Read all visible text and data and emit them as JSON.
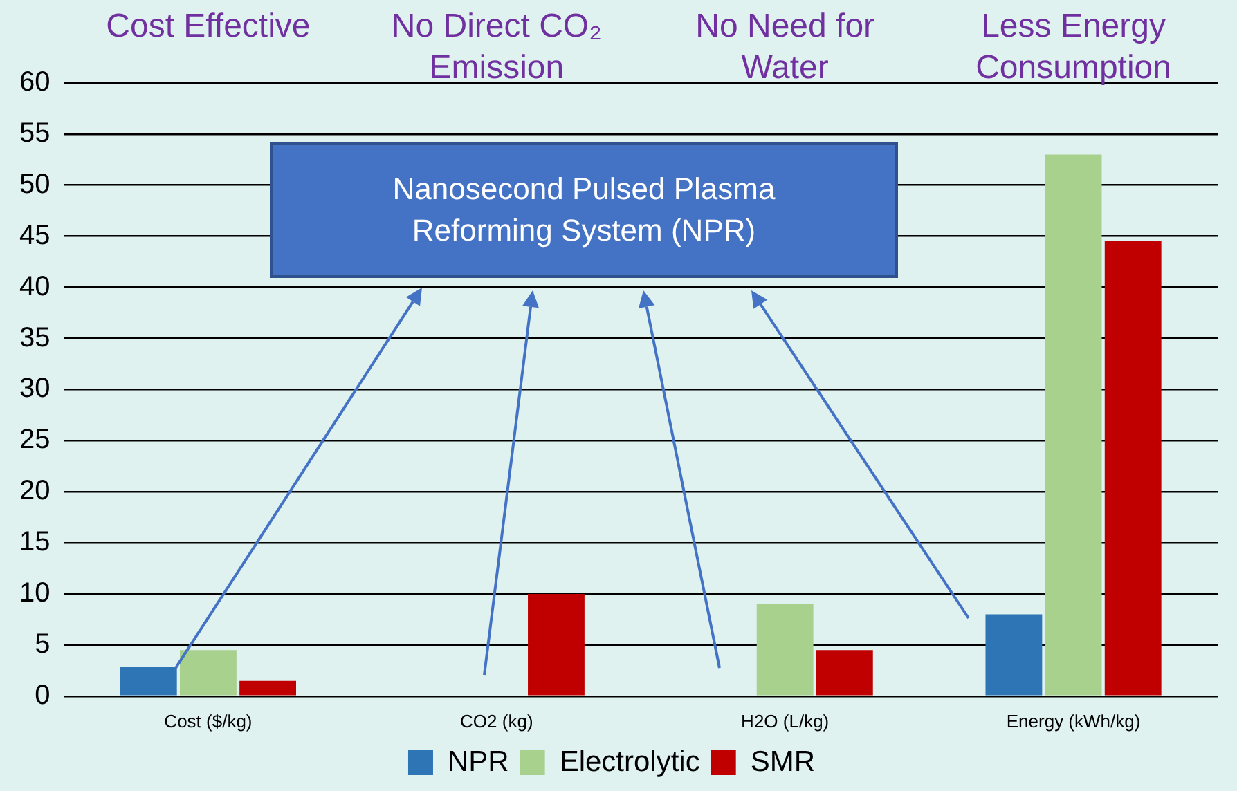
{
  "chart_data": {
    "type": "bar",
    "categories": [
      "Cost ($/kg)",
      "CO2 (kg)",
      "H2O (L/kg)",
      "Energy (kWh/kg)"
    ],
    "series": [
      {
        "name": "NPR",
        "color": "#2e75b6",
        "values": [
          2.9,
          0,
          0,
          8
        ]
      },
      {
        "name": "Electrolytic",
        "color": "#a9d18e",
        "values": [
          4.5,
          0,
          9,
          53
        ]
      },
      {
        "name": "SMR",
        "color": "#c00000",
        "values": [
          1.5,
          10,
          4.5,
          44.5
        ]
      }
    ],
    "ylim": [
      0,
      60
    ],
    "yticks": [
      0,
      5,
      10,
      15,
      20,
      25,
      30,
      35,
      40,
      45,
      50,
      55,
      60
    ],
    "grid": "y",
    "legend": "bottom",
    "annotations": [
      "Cost Effective",
      "No Direct CO₂ Emission",
      "No Need for Water",
      "Less Energy Consumption",
      "Nanosecond Pulsed Plasma Reforming System (NPR)"
    ]
  }
}
